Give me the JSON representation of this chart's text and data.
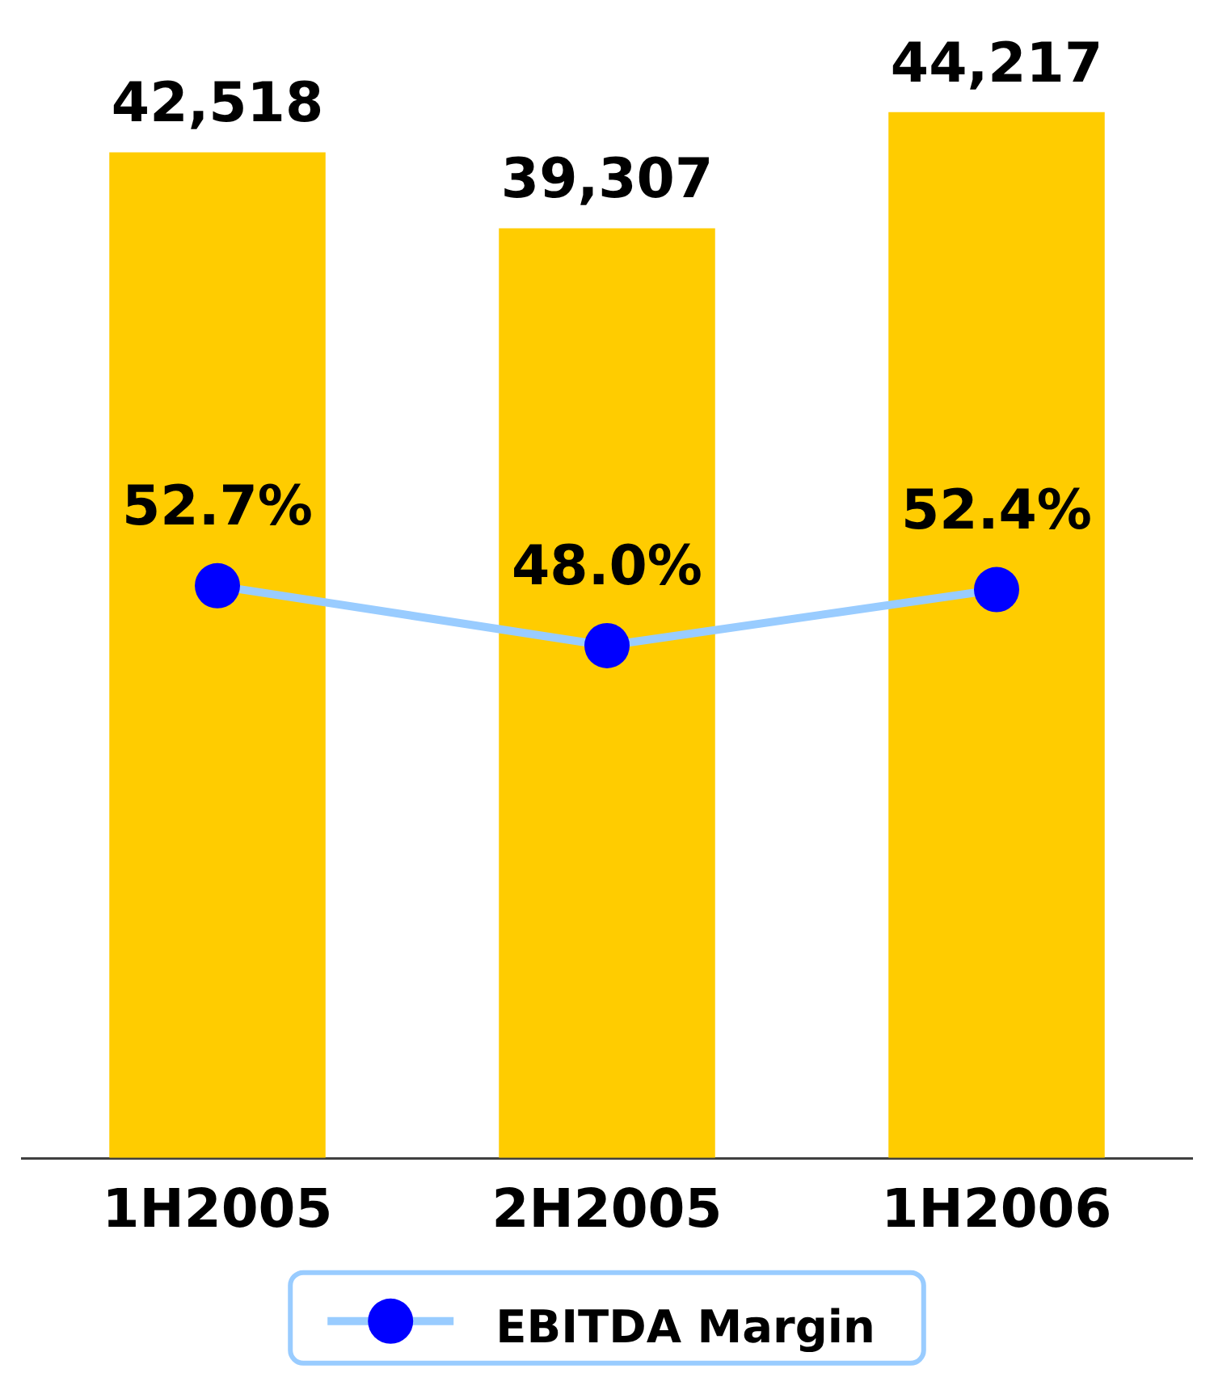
{
  "chart_data": {
    "type": "bar",
    "categories": [
      "1H2005",
      "2H2005",
      "1H2006"
    ],
    "series": [
      {
        "color": "#ffcc00",
        "values": [
          42518,
          39307,
          44217
        ],
        "value_labels": [
          "42,518",
          "39,307",
          "44,217"
        ]
      },
      {
        "type": "line",
        "name": "EBITDA Margin",
        "axis": "y2",
        "color": "#99ccff",
        "colors": [
          "#0000ff",
          "#0000ff",
          "#0000ff"
        ],
        "values": [
          52.7,
          48.0,
          52.4
        ],
        "value_labels": [
          "52.7%",
          "48.0%",
          "52.4%"
        ]
      }
    ],
    "tick_labels": "x",
    "grid": false,
    "legend": "bottom",
    "marker": "circle",
    "line_style": "solid"
  }
}
